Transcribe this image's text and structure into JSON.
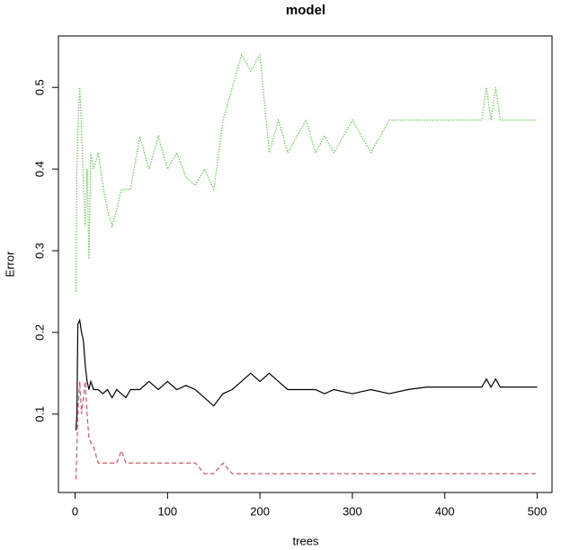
{
  "chart_data": {
    "type": "line",
    "title": "model",
    "x_label": "trees",
    "y_label": "Error",
    "x": [
      1,
      2,
      3,
      5,
      7,
      9,
      11,
      13,
      15,
      17,
      20,
      25,
      30,
      35,
      40,
      45,
      50,
      55,
      60,
      70,
      80,
      90,
      100,
      110,
      120,
      130,
      140,
      150,
      160,
      170,
      180,
      190,
      200,
      210,
      220,
      230,
      240,
      250,
      260,
      270,
      280,
      300,
      320,
      340,
      360,
      380,
      400,
      420,
      440,
      445,
      450,
      455,
      460,
      480,
      500
    ],
    "series": [
      {
        "color": "#000000",
        "dash": "none",
        "values": [
          0.08,
          0.1,
          0.21,
          0.215,
          0.2,
          0.19,
          0.16,
          0.14,
          0.13,
          0.14,
          0.13,
          0.13,
          0.125,
          0.13,
          0.12,
          0.13,
          0.125,
          0.12,
          0.13,
          0.13,
          0.14,
          0.13,
          0.14,
          0.13,
          0.135,
          0.13,
          0.12,
          0.11,
          0.125,
          0.13,
          0.14,
          0.15,
          0.14,
          0.15,
          0.14,
          0.13,
          0.13,
          0.13,
          0.13,
          0.125,
          0.13,
          0.125,
          0.13,
          0.125,
          0.13,
          0.133,
          0.133,
          0.133,
          0.133,
          0.143,
          0.133,
          0.143,
          0.133,
          0.133,
          0.133
        ]
      },
      {
        "color": "#DF536B",
        "dash": "5 3",
        "values": [
          0.02,
          0.06,
          0.1,
          0.14,
          0.1,
          0.12,
          0.14,
          0.1,
          0.07,
          0.065,
          0.06,
          0.04,
          0.04,
          0.04,
          0.04,
          0.04,
          0.055,
          0.04,
          0.04,
          0.04,
          0.04,
          0.04,
          0.04,
          0.04,
          0.04,
          0.04,
          0.027,
          0.027,
          0.04,
          0.027,
          0.027,
          0.027,
          0.027,
          0.027,
          0.027,
          0.027,
          0.027,
          0.027,
          0.027,
          0.027,
          0.027,
          0.027,
          0.027,
          0.027,
          0.027,
          0.027,
          0.027,
          0.027,
          0.027,
          0.027,
          0.027,
          0.027,
          0.027,
          0.027,
          0.027
        ]
      },
      {
        "color": "#61D04F",
        "dash": "1.5 1.5",
        "values": [
          0.25,
          0.4,
          0.45,
          0.5,
          0.45,
          0.38,
          0.33,
          0.4,
          0.29,
          0.42,
          0.4,
          0.42,
          0.38,
          0.35,
          0.33,
          0.35,
          0.375,
          0.375,
          0.375,
          0.44,
          0.4,
          0.44,
          0.4,
          0.42,
          0.39,
          0.38,
          0.4,
          0.375,
          0.46,
          0.5,
          0.54,
          0.52,
          0.54,
          0.42,
          0.46,
          0.42,
          0.44,
          0.46,
          0.42,
          0.44,
          0.42,
          0.46,
          0.42,
          0.46,
          0.46,
          0.46,
          0.46,
          0.46,
          0.46,
          0.5,
          0.46,
          0.5,
          0.46,
          0.46,
          0.46
        ]
      }
    ],
    "xlim": [
      -18,
      516
    ],
    "ylim": [
      0.004,
      0.563
    ],
    "xticks": [
      0,
      100,
      200,
      300,
      400,
      500
    ],
    "yticks": [
      0.1,
      0.2,
      0.3,
      0.4,
      0.5
    ]
  }
}
